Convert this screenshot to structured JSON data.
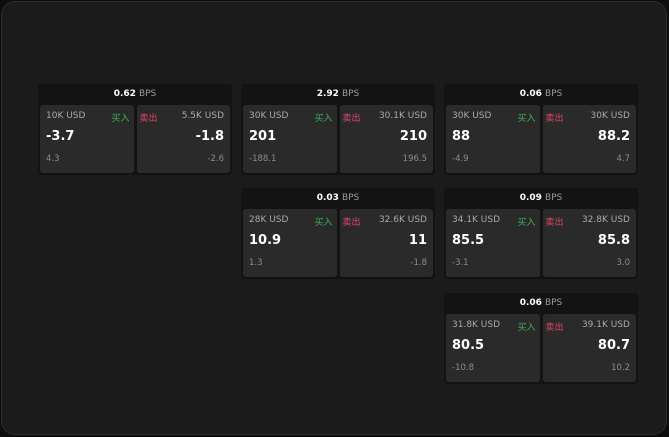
{
  "unit": "BPS",
  "buy_label": "买入",
  "sell_label": "卖出",
  "panels": [
    {
      "bps": "0.62",
      "buy": {
        "size": "10K USD",
        "price": "-3.7",
        "change": "4.3"
      },
      "sell": {
        "size": "5.5K USD",
        "price": "-1.8",
        "change": "-2.6"
      }
    },
    {
      "bps": "2.92",
      "buy": {
        "size": "30K USD",
        "price": "201",
        "change": "-188.1"
      },
      "sell": {
        "size": "30.1K USD",
        "price": "210",
        "change": "196.5"
      }
    },
    {
      "bps": "0.06",
      "buy": {
        "size": "30K USD",
        "price": "88",
        "change": "-4.9"
      },
      "sell": {
        "size": "30K USD",
        "price": "88.2",
        "change": "4.7"
      }
    },
    {
      "bps": "0.03",
      "buy": {
        "size": "28K USD",
        "price": "10.9",
        "change": "1.3"
      },
      "sell": {
        "size": "32.6K USD",
        "price": "11",
        "change": "-1.8"
      }
    },
    {
      "bps": "0.09",
      "buy": {
        "size": "34.1K USD",
        "price": "85.5",
        "change": "-3.1"
      },
      "sell": {
        "size": "32.8K USD",
        "price": "85.8",
        "change": "3.0"
      }
    },
    {
      "bps": "0.06",
      "buy": {
        "size": "31.8K USD",
        "price": "80.5",
        "change": "-10.8"
      },
      "sell": {
        "size": "39.1K USD",
        "price": "80.7",
        "change": "10.2"
      }
    }
  ],
  "colors": {
    "buy": "#3fae5a",
    "sell": "#e0456a",
    "background": "#1b1b1b",
    "cell": "#2a2a2a"
  }
}
